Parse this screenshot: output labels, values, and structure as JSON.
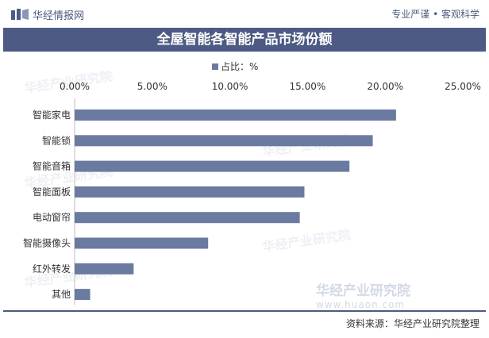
{
  "header": {
    "brand": "华经情报网",
    "slogan": "专业严谨 • 客观科学"
  },
  "title": "全屋智能各智能产品市场份额",
  "legend_label": "占比：%",
  "source": "资料来源：华经产业研究院整理",
  "watermark": {
    "text": "华经产业研究院",
    "site": "www.huaon.com"
  },
  "colors": {
    "bar": "#6b7aa1",
    "title_bg": "#4d5b84"
  },
  "chart_data": {
    "type": "bar",
    "orientation": "horizontal",
    "categories": [
      "智能家电",
      "智能锁",
      "智能音箱",
      "智能面板",
      "电动窗帘",
      "智能摄像头",
      "红外转发",
      "其他"
    ],
    "values": [
      20.7,
      19.2,
      17.7,
      14.8,
      14.5,
      8.6,
      3.8,
      1.0
    ],
    "x_ticks": [
      "0.00%",
      "5.00%",
      "10.00%",
      "15.00%",
      "20.00%",
      "25.00%"
    ],
    "xlim": [
      0,
      25
    ],
    "legend": "占比：%",
    "grid": false
  }
}
